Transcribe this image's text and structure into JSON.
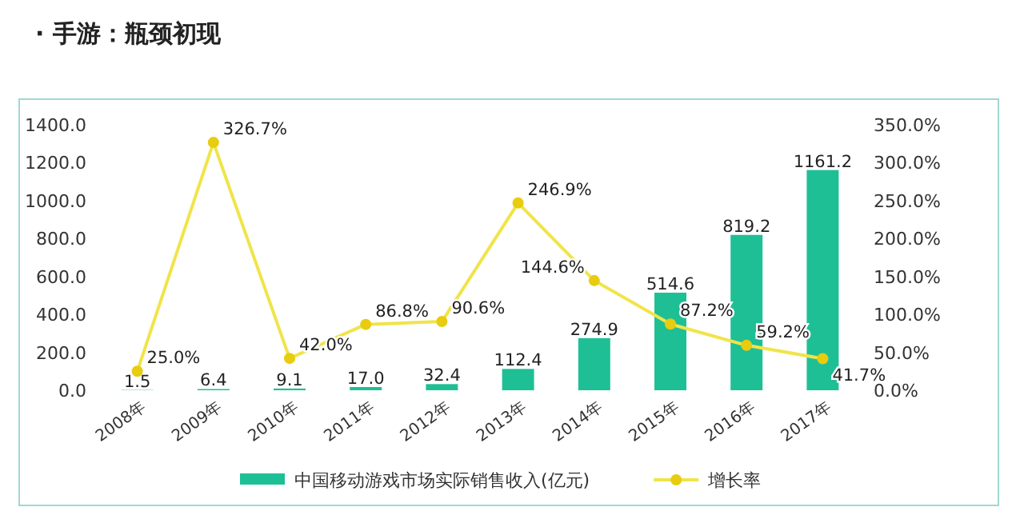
{
  "chart_data": {
    "type": "bar",
    "title": "· 手游：瓶颈初现",
    "categories": [
      "2008年",
      "2009年",
      "2010年",
      "2011年",
      "2012年",
      "2013年",
      "2014年",
      "2015年",
      "2016年",
      "2017年"
    ],
    "series": [
      {
        "name": "中国移动游戏市场实际销售收入(亿元)",
        "type": "bar",
        "color": "#1fbf96",
        "values": [
          1.5,
          6.4,
          9.1,
          17.0,
          32.4,
          112.4,
          274.9,
          514.6,
          819.2,
          1161.2
        ],
        "value_labels": [
          "1.5",
          "6.4",
          "9.1",
          "17.0",
          "32.4",
          "112.4",
          "274.9",
          "514.6",
          "819.2",
          "1161.2"
        ]
      },
      {
        "name": "增长率",
        "type": "line",
        "axis": "y2",
        "color": "#f0e44a",
        "marker": "circle",
        "values": [
          25.0,
          326.7,
          42.0,
          86.8,
          90.6,
          246.9,
          144.6,
          87.2,
          59.2,
          41.7
        ],
        "value_labels": [
          "25.0%",
          "326.7%",
          "42.0%",
          "86.8%",
          "90.6%",
          "246.9%",
          "144.6%",
          "87.2%",
          "59.2%",
          "41.7%"
        ]
      }
    ],
    "ylim": [
      0,
      1400
    ],
    "yticks": [
      {
        "value": 0,
        "label": "0.0"
      },
      {
        "value": 200,
        "label": "200.0"
      },
      {
        "value": 400,
        "label": "400.0"
      },
      {
        "value": 600,
        "label": "600.0"
      },
      {
        "value": 800,
        "label": "800.0"
      },
      {
        "value": 1000,
        "label": "1000.0"
      },
      {
        "value": 1200,
        "label": "1200.0"
      },
      {
        "value": 1400,
        "label": "1400.0"
      }
    ],
    "y2lim": [
      0,
      350
    ],
    "y2ticks": [
      {
        "value": 0,
        "label": "0.0%"
      },
      {
        "value": 50,
        "label": "50.0%"
      },
      {
        "value": 100,
        "label": "100.0%"
      },
      {
        "value": 150,
        "label": "150.0%"
      },
      {
        "value": 200,
        "label": "200.0%"
      },
      {
        "value": 250,
        "label": "250.0%"
      },
      {
        "value": 300,
        "label": "300.0%"
      },
      {
        "value": 350,
        "label": "350.0%"
      }
    ],
    "grid": false,
    "legend": "bottom"
  }
}
